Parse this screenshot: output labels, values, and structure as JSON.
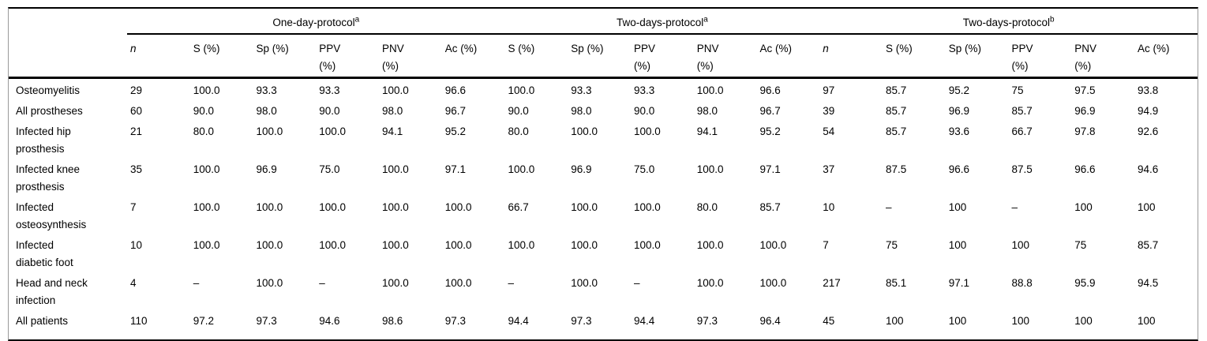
{
  "table": {
    "groups": [
      {
        "label": "One-day-protocol",
        "sup": "a"
      },
      {
        "label": "Two-days-protocol",
        "sup": "a"
      },
      {
        "label": "Two-days-protocol",
        "sup": "b"
      }
    ],
    "columns": [
      "n",
      "S (%)",
      "Sp (%)",
      "PPV\n(%)",
      "PNV\n(%)",
      "Ac (%)",
      "S (%)",
      "Sp (%)",
      "PPV\n(%)",
      "PNV\n(%)",
      "Ac (%)",
      "n",
      "S (%)",
      "Sp (%)",
      "PPV\n(%)",
      "PNV\n(%)",
      "Ac (%)"
    ],
    "rows": [
      {
        "label": "Osteomyelitis",
        "values": [
          "29",
          "100.0",
          "93.3",
          "93.3",
          "100.0",
          "96.6",
          "100.0",
          "93.3",
          "93.3",
          "100.0",
          "96.6",
          "97",
          "85.7",
          "95.2",
          "75",
          "97.5",
          "93.8"
        ]
      },
      {
        "label": "All prostheses",
        "values": [
          "60",
          "90.0",
          "98.0",
          "90.0",
          "98.0",
          "96.7",
          "90.0",
          "98.0",
          "90.0",
          "98.0",
          "96.7",
          "39",
          "85.7",
          "96.9",
          "85.7",
          "96.9",
          "94.9"
        ]
      },
      {
        "label": "Infected hip\nprosthesis",
        "values": [
          "21",
          "80.0",
          "100.0",
          "100.0",
          "94.1",
          "95.2",
          "80.0",
          "100.0",
          "100.0",
          "94.1",
          "95.2",
          "54",
          "85.7",
          "93.6",
          "66.7",
          "97.8",
          "92.6"
        ]
      },
      {
        "label": "Infected knee\nprosthesis",
        "values": [
          "35",
          "100.0",
          "96.9",
          "75.0",
          "100.0",
          "97.1",
          "100.0",
          "96.9",
          "75.0",
          "100.0",
          "97.1",
          "37",
          "87.5",
          "96.6",
          "87.5",
          "96.6",
          "94.6"
        ]
      },
      {
        "label": "Infected\nosteosynthesis",
        "values": [
          "7",
          "100.0",
          "100.0",
          "100.0",
          "100.0",
          "100.0",
          "66.7",
          "100.0",
          "100.0",
          "80.0",
          "85.7",
          "10",
          "–",
          "100",
          "–",
          "100",
          "100"
        ]
      },
      {
        "label": "Infected\ndiabetic foot",
        "values": [
          "10",
          "100.0",
          "100.0",
          "100.0",
          "100.0",
          "100.0",
          "100.0",
          "100.0",
          "100.0",
          "100.0",
          "100.0",
          "7",
          "75",
          "100",
          "100",
          "75",
          "85.7"
        ]
      },
      {
        "label": "Head and neck\ninfection",
        "values": [
          "4",
          "–",
          "100.0",
          "–",
          "100.0",
          "100.0",
          "–",
          "100.0",
          "–",
          "100.0",
          "100.0",
          "217",
          "85.1",
          "97.1",
          "88.8",
          "95.9",
          "94.5"
        ]
      },
      {
        "label": "All patients",
        "values": [
          "110",
          "97.2",
          "97.3",
          "94.6",
          "98.6",
          "97.3",
          "94.4",
          "97.3",
          "94.4",
          "97.3",
          "96.4",
          "45",
          "100",
          "100",
          "100",
          "100",
          "100"
        ]
      }
    ]
  },
  "colors": {
    "rule": "#000000",
    "outer_border": "#9a9a9a",
    "text": "#000000",
    "background": "#ffffff"
  }
}
